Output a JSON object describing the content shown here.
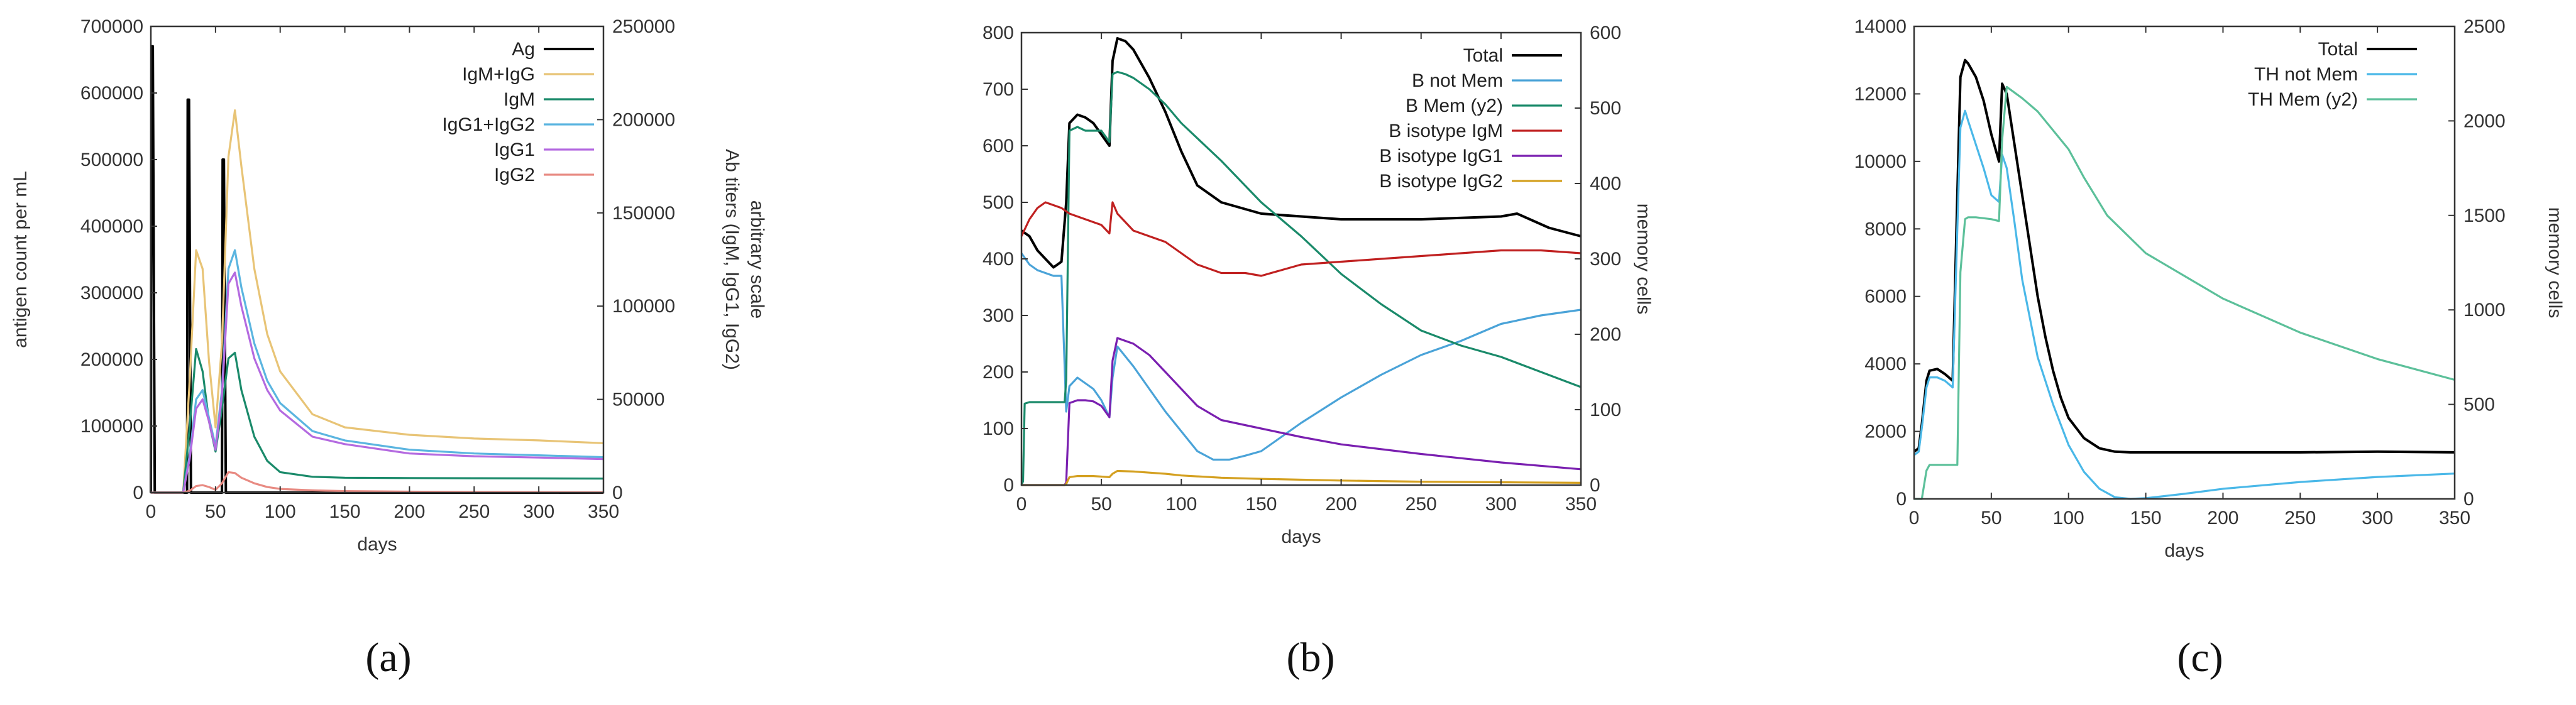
{
  "chart_data": [
    {
      "type": "line",
      "panel_label": "(a)",
      "xlabel": "days",
      "ylabel": "antigen count per mL",
      "y2label_lines": [
        "Ab titers (IgM, IgG1, IgG2)",
        "arbitrary scale"
      ],
      "xlim": [
        0,
        350
      ],
      "ylim": [
        0,
        700000
      ],
      "y2lim": [
        0,
        250000
      ],
      "xticks": [
        0,
        50,
        100,
        150,
        200,
        250,
        300,
        350
      ],
      "yticks": [
        0,
        100000,
        200000,
        300000,
        400000,
        500000,
        600000,
        700000
      ],
      "y2ticks": [
        0,
        50000,
        100000,
        150000,
        200000,
        250000
      ],
      "legend_position": "top-right",
      "series": [
        {
          "name": "Ag",
          "color": "#000000",
          "axis": "y",
          "x": [
            0,
            0.5,
            1.5,
            3,
            28,
            28.5,
            29.5,
            31,
            55,
            55.5,
            56.5,
            58,
            350
          ],
          "y": [
            0,
            670000,
            670000,
            0,
            0,
            590000,
            590000,
            0,
            0,
            500000,
            500000,
            0,
            0
          ]
        },
        {
          "name": "IgM+IgG",
          "color": "#e8c476",
          "axis": "y2",
          "x": [
            0,
            25,
            30,
            35,
            40,
            45,
            50,
            55,
            60,
            65,
            70,
            80,
            90,
            100,
            125,
            150,
            200,
            250,
            300,
            350
          ],
          "y": [
            0,
            0,
            60000,
            130000,
            120000,
            70000,
            35000,
            80000,
            180000,
            205000,
            175000,
            120000,
            85000,
            65000,
            42000,
            35000,
            31000,
            29000,
            28000,
            26500
          ]
        },
        {
          "name": "IgM",
          "color": "#1a8a6a",
          "axis": "y2",
          "x": [
            0,
            25,
            30,
            35,
            40,
            45,
            50,
            55,
            60,
            65,
            70,
            80,
            90,
            100,
            125,
            150,
            200,
            250,
            300,
            350
          ],
          "y": [
            0,
            0,
            35000,
            77000,
            65000,
            38000,
            22000,
            45000,
            72000,
            75000,
            55000,
            30000,
            17000,
            11000,
            8500,
            8000,
            7800,
            7700,
            7600,
            7500
          ]
        },
        {
          "name": "IgG1+IgG2",
          "color": "#5bb5e0",
          "axis": "y2",
          "x": [
            0,
            25,
            30,
            35,
            40,
            45,
            50,
            55,
            60,
            65,
            70,
            80,
            90,
            100,
            125,
            150,
            200,
            250,
            300,
            350
          ],
          "y": [
            0,
            0,
            20000,
            50000,
            55000,
            40000,
            25000,
            55000,
            120000,
            130000,
            110000,
            80000,
            60000,
            48000,
            33000,
            28000,
            23000,
            21000,
            20000,
            19000
          ]
        },
        {
          "name": "IgG1",
          "color": "#b46ae0",
          "axis": "y2",
          "x": [
            0,
            25,
            30,
            35,
            40,
            45,
            50,
            55,
            60,
            65,
            70,
            80,
            90,
            100,
            125,
            150,
            200,
            250,
            300,
            350
          ],
          "y": [
            0,
            0,
            18000,
            45000,
            50000,
            38000,
            23000,
            52000,
            112000,
            118000,
            100000,
            72000,
            55000,
            44000,
            30000,
            26000,
            21000,
            19500,
            18800,
            18000
          ]
        },
        {
          "name": "IgG2",
          "color": "#e88a82",
          "axis": "y2",
          "x": [
            0,
            25,
            30,
            35,
            40,
            45,
            50,
            55,
            60,
            65,
            70,
            80,
            90,
            100,
            125,
            150,
            200,
            250,
            300,
            350
          ],
          "y": [
            0,
            0,
            1000,
            3500,
            4000,
            3000,
            1500,
            5000,
            11000,
            10500,
            8000,
            5000,
            3000,
            2000,
            1200,
            800,
            500,
            300,
            200,
            150
          ]
        }
      ]
    },
    {
      "type": "line",
      "panel_label": "(b)",
      "xlabel": "days",
      "ylabel": "",
      "y2label": "memory cells",
      "xlim": [
        0,
        350
      ],
      "ylim": [
        0,
        800
      ],
      "y2lim": [
        0,
        600
      ],
      "xticks": [
        0,
        50,
        100,
        150,
        200,
        250,
        300,
        350
      ],
      "yticks": [
        0,
        100,
        200,
        300,
        400,
        500,
        600,
        700,
        800
      ],
      "y2ticks": [
        0,
        100,
        200,
        300,
        400,
        500,
        600
      ],
      "legend_position": "top-right",
      "series": [
        {
          "name": "Total",
          "color": "#000000",
          "axis": "y",
          "x": [
            0,
            5,
            10,
            15,
            20,
            25,
            28,
            30,
            35,
            40,
            45,
            50,
            55,
            57,
            60,
            65,
            70,
            80,
            90,
            100,
            110,
            125,
            150,
            175,
            200,
            250,
            300,
            310,
            330,
            350
          ],
          "y": [
            450,
            440,
            415,
            400,
            385,
            395,
            500,
            640,
            655,
            650,
            640,
            620,
            600,
            750,
            790,
            785,
            770,
            720,
            660,
            590,
            530,
            500,
            480,
            475,
            470,
            470,
            475,
            480,
            455,
            440
          ]
        },
        {
          "name": "B not Mem",
          "color": "#4aa3d8",
          "axis": "y",
          "x": [
            0,
            5,
            10,
            15,
            20,
            25,
            28,
            30,
            35,
            40,
            45,
            50,
            55,
            57,
            60,
            70,
            80,
            90,
            100,
            110,
            120,
            130,
            140,
            150,
            160,
            175,
            200,
            225,
            250,
            275,
            300,
            325,
            350
          ],
          "y": [
            410,
            390,
            380,
            375,
            370,
            370,
            130,
            175,
            190,
            180,
            170,
            150,
            120,
            190,
            245,
            210,
            170,
            130,
            95,
            60,
            45,
            45,
            52,
            60,
            80,
            110,
            155,
            195,
            230,
            255,
            285,
            300,
            310
          ]
        },
        {
          "name": "B Mem (y2)",
          "color": "#1a8a6a",
          "axis": "y2",
          "x": [
            0,
            1,
            2,
            5,
            10,
            15,
            20,
            25,
            27,
            28,
            29,
            30,
            35,
            40,
            50,
            55,
            57,
            60,
            65,
            70,
            80,
            90,
            100,
            125,
            150,
            175,
            200,
            225,
            250,
            275,
            300,
            325,
            350
          ],
          "y": [
            0,
            5,
            108,
            110,
            110,
            110,
            110,
            110,
            110,
            140,
            300,
            470,
            475,
            470,
            470,
            455,
            545,
            548,
            545,
            540,
            525,
            505,
            480,
            430,
            375,
            330,
            280,
            240,
            205,
            185,
            170,
            150,
            130
          ]
        },
        {
          "name": "B isotype IgM",
          "color": "#c02020",
          "axis": "y",
          "x": [
            0,
            5,
            10,
            15,
            20,
            25,
            30,
            35,
            40,
            45,
            50,
            55,
            57,
            60,
            70,
            80,
            90,
            100,
            110,
            125,
            140,
            150,
            175,
            200,
            225,
            250,
            275,
            300,
            325,
            350
          ],
          "y": [
            440,
            470,
            490,
            500,
            495,
            490,
            480,
            475,
            470,
            465,
            460,
            445,
            500,
            480,
            450,
            440,
            430,
            410,
            390,
            375,
            375,
            370,
            390,
            395,
            400,
            405,
            410,
            415,
            415,
            410
          ]
        },
        {
          "name": "B isotype IgG1",
          "color": "#7a1fb0",
          "axis": "y",
          "x": [
            0,
            27,
            28,
            30,
            35,
            40,
            45,
            50,
            55,
            57,
            60,
            70,
            80,
            90,
            100,
            110,
            125,
            150,
            175,
            200,
            250,
            300,
            350
          ],
          "y": [
            0,
            0,
            5,
            145,
            150,
            150,
            148,
            140,
            120,
            220,
            260,
            250,
            230,
            200,
            170,
            140,
            115,
            100,
            85,
            72,
            55,
            40,
            28
          ]
        },
        {
          "name": "B isotype IgG2",
          "color": "#d4a020",
          "axis": "y",
          "x": [
            0,
            27,
            28,
            30,
            35,
            40,
            45,
            50,
            55,
            57,
            60,
            70,
            80,
            90,
            100,
            125,
            150,
            200,
            250,
            300,
            350
          ],
          "y": [
            0,
            0,
            2,
            14,
            16,
            16,
            16,
            15,
            14,
            20,
            25,
            24,
            22,
            20,
            17,
            13,
            11,
            8,
            6,
            5,
            4
          ]
        }
      ]
    },
    {
      "type": "line",
      "panel_label": "(c)",
      "xlabel": "days",
      "ylabel": "",
      "y2label": "memory cells",
      "xlim": [
        0,
        350
      ],
      "ylim": [
        0,
        14000
      ],
      "y2lim": [
        0,
        2500
      ],
      "xticks": [
        0,
        50,
        100,
        150,
        200,
        250,
        300,
        350
      ],
      "yticks": [
        0,
        2000,
        4000,
        6000,
        8000,
        10000,
        12000,
        14000
      ],
      "y2ticks": [
        0,
        500,
        1000,
        1500,
        2000,
        2500
      ],
      "legend_position": "top-right",
      "series": [
        {
          "name": "Total",
          "color": "#000000",
          "axis": "y",
          "x": [
            0,
            3,
            5,
            8,
            10,
            15,
            20,
            25,
            28,
            30,
            33,
            35,
            40,
            45,
            50,
            55,
            57,
            60,
            65,
            70,
            75,
            80,
            85,
            90,
            95,
            100,
            110,
            120,
            130,
            140,
            150,
            175,
            200,
            250,
            300,
            350
          ],
          "y": [
            1400,
            1500,
            2200,
            3500,
            3800,
            3850,
            3700,
            3500,
            9000,
            12500,
            13000,
            12900,
            12500,
            11800,
            10800,
            10000,
            12300,
            12000,
            10500,
            9000,
            7500,
            6000,
            4800,
            3800,
            3000,
            2400,
            1800,
            1500,
            1400,
            1380,
            1380,
            1380,
            1380,
            1380,
            1400,
            1380
          ]
        },
        {
          "name": "TH not Mem",
          "color": "#4ab8e8",
          "axis": "y",
          "x": [
            0,
            3,
            5,
            8,
            10,
            15,
            20,
            25,
            28,
            30,
            33,
            35,
            40,
            45,
            50,
            55,
            57,
            60,
            65,
            70,
            80,
            90,
            100,
            110,
            120,
            130,
            140,
            150,
            175,
            200,
            250,
            300,
            350
          ],
          "y": [
            1300,
            1400,
            2100,
            3300,
            3600,
            3600,
            3500,
            3300,
            8000,
            11000,
            11500,
            11200,
            10500,
            9800,
            9000,
            8800,
            10200,
            9800,
            8200,
            6500,
            4200,
            2800,
            1600,
            800,
            300,
            50,
            0,
            20,
            150,
            300,
            500,
            650,
            750
          ]
        },
        {
          "name": "TH Mem (y2)",
          "color": "#5cc09a",
          "axis": "y2",
          "x": [
            0,
            5,
            8,
            10,
            20,
            28,
            30,
            33,
            35,
            40,
            50,
            55,
            57,
            60,
            65,
            70,
            80,
            90,
            100,
            110,
            125,
            150,
            175,
            200,
            250,
            300,
            350
          ],
          "y": [
            0,
            0,
            150,
            180,
            180,
            180,
            1200,
            1480,
            1490,
            1490,
            1480,
            1470,
            1900,
            2180,
            2150,
            2120,
            2050,
            1950,
            1850,
            1700,
            1500,
            1300,
            1180,
            1060,
            880,
            740,
            630
          ]
        }
      ]
    }
  ]
}
